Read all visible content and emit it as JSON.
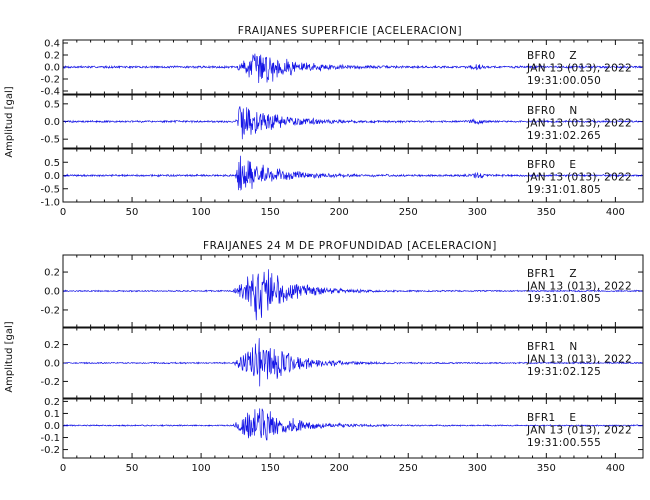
{
  "chart_data": [
    {
      "type": "line",
      "title": "FRAIJANES SUPERFICIE [ACELERACION]",
      "ylabel": "Amplitud [gal]",
      "xlabel": "",
      "xlim": [
        0,
        420
      ],
      "xticks": [
        "0",
        "50",
        "100",
        "150",
        "200",
        "250",
        "300",
        "350",
        "400"
      ],
      "grid": false,
      "panels": [
        {
          "station": "BFR0",
          "component": "Z",
          "date": "JAN 13 (013), 2022",
          "time": "19:31:00.050",
          "ylim": [
            -0.45,
            0.45
          ],
          "yticks": [
            "0.4",
            "0.2",
            "0.0",
            "-0.2",
            "-0.4"
          ],
          "event_start": 125,
          "peak_time": 143,
          "peak_amplitude": 0.34,
          "noise_level": 0.02,
          "late_burst_time": 300,
          "late_burst_amplitude": 0.04
        },
        {
          "station": "BFR0",
          "component": "N",
          "date": "JAN 13 (013), 2022",
          "time": "19:31:02.265",
          "ylim": [
            -0.75,
            0.75
          ],
          "yticks": [
            "0.5",
            "0.0",
            "-0.5"
          ],
          "event_start": 125,
          "peak_time": 128,
          "peak_amplitude": 0.7,
          "noise_level": 0.03,
          "late_burst_time": 300,
          "late_burst_amplitude": 0.06
        },
        {
          "station": "BFR0",
          "component": "E",
          "date": "JAN 13 (013), 2022",
          "time": "19:31:01.805",
          "ylim": [
            -1.0,
            1.0
          ],
          "yticks": [
            "0.5",
            "0.0",
            "-0.5",
            "-1.0"
          ],
          "event_start": 125,
          "peak_time": 127,
          "peak_amplitude": 0.95,
          "noise_level": 0.04,
          "late_burst_time": 300,
          "late_burst_amplitude": 0.1
        }
      ]
    },
    {
      "type": "line",
      "title": "FRAIJANES 24 M DE PROFUNDIDAD [ACELERACION]",
      "ylabel": "Amplitud [gal]",
      "xlabel": "",
      "xlim": [
        0,
        420
      ],
      "xticks": [
        "0",
        "50",
        "100",
        "150",
        "200",
        "250",
        "300",
        "350",
        "400"
      ],
      "grid": false,
      "panels": [
        {
          "station": "BFR1",
          "component": "Z",
          "date": "JAN 13 (013), 2022",
          "time": "19:31:01.805",
          "ylim": [
            -0.38,
            0.38
          ],
          "yticks": [
            "0.2",
            "0.0",
            "-0.2"
          ],
          "event_start": 123,
          "peak_time": 140,
          "peak_amplitude": 0.35,
          "noise_level": 0.008,
          "late_burst_time": 0,
          "late_burst_amplitude": 0
        },
        {
          "station": "BFR1",
          "component": "N",
          "date": "JAN 13 (013), 2022",
          "time": "19:31:02.125",
          "ylim": [
            -0.38,
            0.38
          ],
          "yticks": [
            "0.2",
            "0.0",
            "-0.2"
          ],
          "event_start": 123,
          "peak_time": 142,
          "peak_amplitude": 0.3,
          "noise_level": 0.008,
          "late_burst_time": 0,
          "late_burst_amplitude": 0
        },
        {
          "station": "BFR1",
          "component": "E",
          "date": "JAN 13 (013), 2022",
          "time": "19:31:00.555",
          "ylim": [
            -0.27,
            0.22
          ],
          "yticks": [
            "0.2",
            "0.1",
            "0.0",
            "-0.1",
            "-0.2"
          ],
          "event_start": 123,
          "peak_time": 140,
          "peak_amplitude": 0.2,
          "noise_level": 0.006,
          "late_burst_time": 0,
          "late_burst_amplitude": 0
        }
      ]
    }
  ],
  "colors": {
    "trace": "#1414e6",
    "axis": "#111111"
  }
}
